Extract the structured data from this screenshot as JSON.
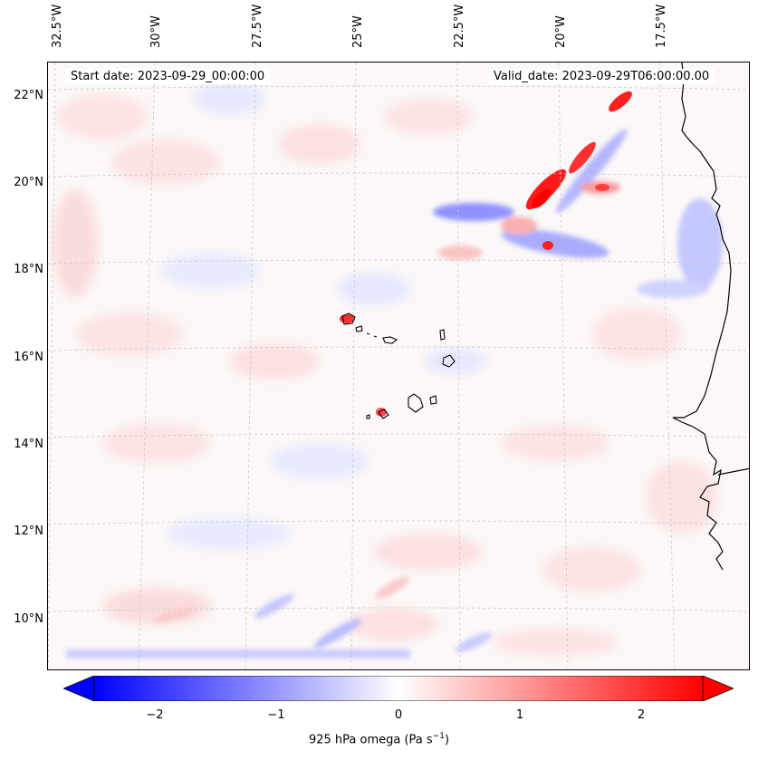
{
  "map": {
    "start_date_text": "Start date: 2023-09-29_00:00:00",
    "valid_date_text": "Valid_date: 2023-09-29T06:00:00.00",
    "lon_ticks": [
      "32.5°W",
      "30°W",
      "27.5°W",
      "25°W",
      "22.5°W",
      "20°W",
      "17.5°W"
    ],
    "lat_ticks": [
      "22°N",
      "20°N",
      "18°N",
      "16°N",
      "14°N",
      "12°N",
      "10°N"
    ],
    "colors": {
      "negative_max": "#0000ff",
      "neutral": "#ffffff",
      "positive_max": "#ff0000",
      "coastline": "#000000",
      "gridline": "#c8c8c8"
    }
  },
  "colorbar": {
    "ticks": [
      "−2",
      "−1",
      "0",
      "1",
      "2"
    ],
    "label_main": "925 hPa omega (Pa s",
    "label_sup": "−1",
    "label_end": ")",
    "range": [
      -2.5,
      2.5
    ],
    "extend": "both"
  }
}
